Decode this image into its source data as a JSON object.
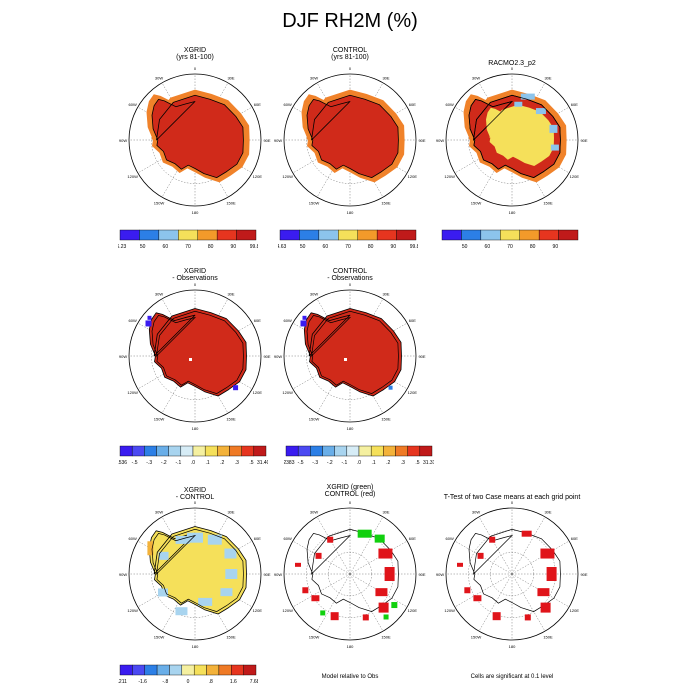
{
  "title": "DJF RH2M (%)",
  "lon_labels": [
    "0",
    "30E",
    "60E",
    "90E",
    "120E",
    "150E",
    "180",
    "150W",
    "120W",
    "90W",
    "60W",
    "30W"
  ],
  "panels": [
    {
      "id": "p1",
      "title_lines": [
        "XGRID",
        "(yrs 81-100)"
      ],
      "style": "full-red"
    },
    {
      "id": "p2",
      "title_lines": [
        "CONTROL",
        "(yrs 81-100)"
      ],
      "style": "full-red"
    },
    {
      "id": "p3",
      "title_lines": [
        "RACMO2.3_p2"
      ],
      "style": "racmo"
    },
    {
      "id": "p4",
      "title_lines": [
        "XGRID",
        "- Observations"
      ],
      "style": "diff-obs"
    },
    {
      "id": "p5",
      "title_lines": [
        "CONTROL",
        "- Observations"
      ],
      "style": "diff-obs2"
    },
    {
      "id": "p6",
      "title_lines": [
        "XGRID",
        "- CONTROL"
      ],
      "style": "diff-model"
    },
    {
      "id": "p7",
      "title_lines": [
        "XGRID (green)",
        "CONTROL (red)"
      ],
      "style": "sig-green"
    },
    {
      "id": "p8",
      "title_lines": [
        "T-Test of two Case means at each grid point"
      ],
      "style": "sig-red"
    }
  ],
  "colorbars": [
    {
      "id": "cb1",
      "colors": [
        "#3a1cf0",
        "#2c7fe6",
        "#8cc4ec",
        "#f5e05a",
        "#f39a2a",
        "#e6351f",
        "#c01a1a"
      ],
      "labels": [
        "16.23",
        "50",
        "60",
        "70",
        "80",
        "90",
        "99.87"
      ]
    },
    {
      "id": "cb2",
      "colors": [
        "#3a1cf0",
        "#2c7fe6",
        "#8cc4ec",
        "#f5e05a",
        "#f39a2a",
        "#e6351f",
        "#c01a1a"
      ],
      "labels": [
        "14.63",
        "50",
        "60",
        "70",
        "80",
        "90",
        "99.89"
      ]
    },
    {
      "id": "cb3",
      "colors": [
        "#3a1cf0",
        "#2c7fe6",
        "#8cc4ec",
        "#f5e05a",
        "#f39a2a",
        "#e6351f",
        "#c01a1a"
      ],
      "labels": [
        "",
        "50",
        "60",
        "70",
        "80",
        "90",
        ""
      ]
    },
    {
      "id": "cb4",
      "colors": [
        "#3a1cf0",
        "#4b49f2",
        "#2c7fe6",
        "#69aee8",
        "#a8d4ef",
        "#d6ecf6",
        "#f5f0a0",
        "#f5e05a",
        "#f3b23a",
        "#ef7a25",
        "#e6351f",
        "#c01a1a"
      ],
      "labels": [
        "-2.536",
        "-.5",
        "-.3",
        "-.2",
        "-.1",
        ".0",
        ".1",
        ".2",
        ".3",
        ".5",
        "31.4099"
      ]
    },
    {
      "id": "cb5",
      "colors": [
        "#3a1cf0",
        "#4b49f2",
        "#2c7fe6",
        "#69aee8",
        "#a8d4ef",
        "#d6ecf6",
        "#f5f0a0",
        "#f5e05a",
        "#f3b23a",
        "#ef7a25",
        "#e6351f",
        "#c01a1a"
      ],
      "labels": [
        "-3.2383",
        "-.5",
        "-.3",
        "-.2",
        "-.1",
        ".0",
        ".1",
        ".2",
        ".3",
        ".5",
        "31.3106"
      ]
    },
    {
      "id": "cb6",
      "colors": [
        "#3a1cf0",
        "#4b49f2",
        "#2c7fe6",
        "#69aee8",
        "#a8d4ef",
        "#f5f0a0",
        "#f5e05a",
        "#f3b23a",
        "#ef7a25",
        "#e6351f",
        "#c01a1a"
      ],
      "labels": [
        "-5.211",
        "-1.6",
        "-.8",
        "0",
        ".8",
        "1.6",
        "7.683"
      ]
    }
  ],
  "notes": {
    "model_relative": "Model relative to Obs",
    "significance": "Cells are significant at 0.1 level"
  },
  "chart_data": [
    {
      "type": "heatmap",
      "title": "XGRID (yrs 81-100)",
      "variable": "DJF RH2M (%)",
      "range": [
        16.23,
        99.87
      ],
      "legend_levels": [
        50,
        60,
        70,
        80,
        90
      ],
      "dominant_value": "90-99.87 over continent, 80-90 coastal margin"
    },
    {
      "type": "heatmap",
      "title": "CONTROL (yrs 81-100)",
      "variable": "DJF RH2M (%)",
      "range": [
        14.63,
        99.89
      ],
      "legend_levels": [
        50,
        60,
        70,
        80,
        90
      ],
      "dominant_value": "90-99.89 over continent, 80-90 coastal margin"
    },
    {
      "type": "heatmap",
      "title": "RACMO2.3_p2",
      "variable": "DJF RH2M (%)",
      "legend_levels": [
        50,
        60,
        70,
        80,
        90
      ],
      "dominant_value": "70-80 interior East Antarctica, 90+ West Antarctica/coast"
    },
    {
      "type": "heatmap",
      "title": "XGRID - Observations",
      "range": [
        -2.536,
        31.4099
      ],
      "legend_levels": [
        -0.5,
        -0.3,
        -0.2,
        -0.1,
        0.0,
        0.1,
        0.2,
        0.3,
        0.5
      ]
    },
    {
      "type": "heatmap",
      "title": "CONTROL - Observations",
      "range": [
        -3.2383,
        31.3106
      ],
      "legend_levels": [
        -0.5,
        -0.3,
        -0.2,
        -0.1,
        0.0,
        0.1,
        0.2,
        0.3,
        0.5
      ]
    },
    {
      "type": "heatmap",
      "title": "XGRID - CONTROL",
      "range": [
        -5.211,
        7.683
      ],
      "legend_levels": [
        -1.6,
        -0.8,
        0,
        0.8,
        1.6
      ]
    },
    {
      "type": "heatmap",
      "title": "XGRID (green) CONTROL (red)",
      "subtitle": "Model relative to Obs"
    },
    {
      "type": "heatmap",
      "title": "T-Test of two Case means at each grid point",
      "subtitle": "Cells are significant at 0.1 level"
    }
  ]
}
